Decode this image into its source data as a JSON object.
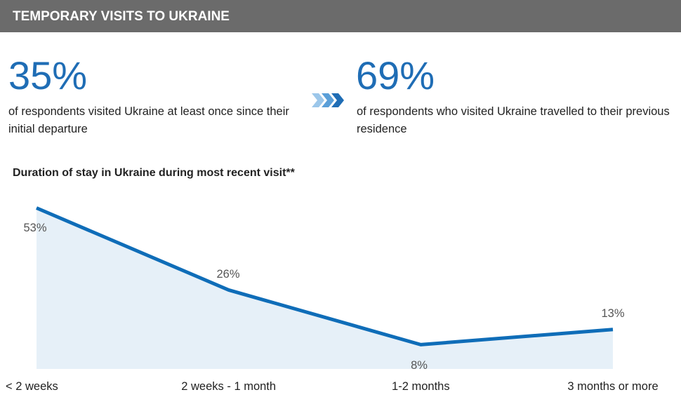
{
  "header": {
    "title": "TEMPORARY VISITS TO UKRAINE"
  },
  "stats": [
    {
      "value": "35%",
      "text": "of respondents visited Ukraine at least once since their initial departure"
    },
    {
      "value": "69%",
      "text": "of respondents who visited Ukraine travelled to their previous residence"
    }
  ],
  "chart_data": {
    "type": "line",
    "title": "Duration of stay in Ukraine during most recent visit**",
    "categories": [
      "< 2 weeks",
      "2 weeks - 1 month",
      "1-2 months",
      "3 months or more"
    ],
    "values": [
      53,
      26,
      8,
      13
    ],
    "value_labels": [
      "53%",
      "26%",
      "8%",
      "13%"
    ],
    "color": "#0f6db8"
  }
}
